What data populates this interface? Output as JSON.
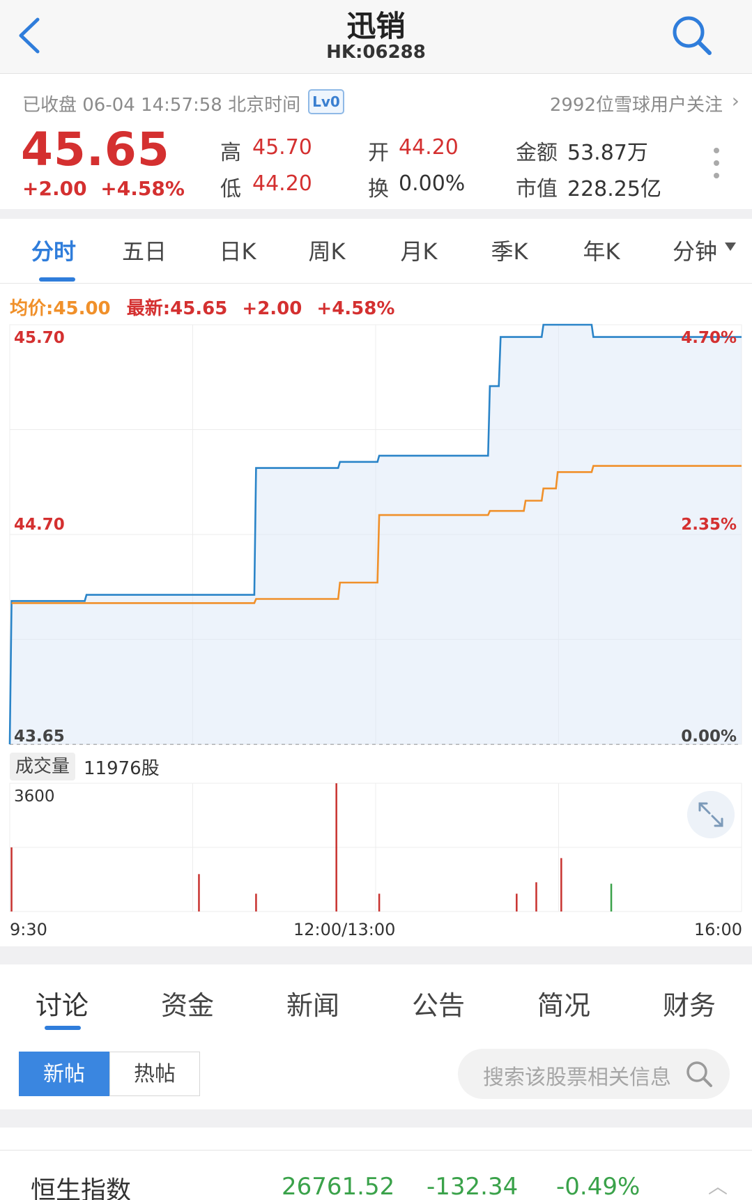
{
  "header": {
    "title": "迅销",
    "code": "HK:06288"
  },
  "quote": {
    "status": "已收盘 06-04 14:57:58 北京时间",
    "level_badge": "Lv0",
    "followers": "2992位雪球用户关注",
    "price": "45.65",
    "change": "+2.00",
    "change_pct": "+4.58%",
    "stats": {
      "high_label": "高",
      "high": "45.70",
      "low_label": "低",
      "low": "44.20",
      "open_label": "开",
      "open": "44.20",
      "turnover_label": "换",
      "turnover": "0.00%",
      "amount_label": "金额",
      "amount": "53.87万",
      "mcap_label": "市值",
      "mcap": "228.25亿"
    },
    "colors": {
      "up": "#d43030",
      "down": "#3aa24a",
      "accent": "#2f7ddb"
    }
  },
  "period_tabs": [
    "分时",
    "五日",
    "日K",
    "周K",
    "月K",
    "季K",
    "年K",
    "分钟"
  ],
  "period_tabs_dropdown_icon": "caret-down-icon",
  "active_period_tab": 0,
  "chart_header": {
    "avg_price": "均价:45.00",
    "latest": "最新:45.65",
    "change": "+2.00",
    "change_pct": "+4.58%"
  },
  "volume": {
    "label": "成交量",
    "total": "11976股"
  },
  "chart_data": {
    "type": "line",
    "price_axis": {
      "ticks": [
        "45.70",
        "44.70",
        "43.65"
      ],
      "ylim": [
        43.65,
        45.7
      ]
    },
    "percent_axis": {
      "ticks": [
        "4.70%",
        "2.35%",
        "0.00%"
      ]
    },
    "volume_axis": {
      "ticks": [
        "3600"
      ],
      "ylim": [
        0,
        3600
      ]
    },
    "time_ticks": [
      "9:30",
      "12:00/13:00",
      "16:00"
    ],
    "x_minutes_range": [
      0,
      330
    ],
    "series": [
      {
        "color": "#2a84c8",
        "points": [
          [
            0,
            43.65
          ],
          [
            1,
            44.35
          ],
          [
            42,
            44.35
          ],
          [
            43,
            44.38
          ],
          [
            137,
            44.38
          ],
          [
            138,
            45.0
          ],
          [
            184,
            45.0
          ],
          [
            185,
            45.03
          ],
          [
            206,
            45.03
          ],
          [
            207,
            45.06
          ],
          [
            268,
            45.06
          ],
          [
            269,
            45.4
          ],
          [
            274,
            45.4
          ],
          [
            275,
            45.64
          ],
          [
            298,
            45.64
          ],
          [
            299,
            45.7
          ],
          [
            326,
            45.7
          ],
          [
            327,
            45.64
          ],
          [
            410,
            45.64
          ]
        ]
      },
      {
        "color": "#f0902a",
        "points": [
          [
            1,
            44.34
          ],
          [
            137,
            44.34
          ],
          [
            138,
            44.36
          ],
          [
            184,
            44.36
          ],
          [
            185,
            44.44
          ],
          [
            206,
            44.44
          ],
          [
            207,
            44.77
          ],
          [
            268,
            44.77
          ],
          [
            269,
            44.79
          ],
          [
            288,
            44.79
          ],
          [
            289,
            44.84
          ],
          [
            298,
            44.84
          ],
          [
            299,
            44.9
          ],
          [
            306,
            44.9
          ],
          [
            307,
            44.98
          ],
          [
            326,
            44.98
          ],
          [
            327,
            45.01
          ],
          [
            410,
            45.01
          ]
        ]
      }
    ],
    "volume_bars": [
      {
        "t": 1,
        "v": 1800,
        "dir": "up"
      },
      {
        "t": 106,
        "v": 1050,
        "dir": "up"
      },
      {
        "t": 138,
        "v": 500,
        "dir": "up"
      },
      {
        "t": 183,
        "v": 3600,
        "dir": "up"
      },
      {
        "t": 207,
        "v": 500,
        "dir": "up"
      },
      {
        "t": 284,
        "v": 500,
        "dir": "up"
      },
      {
        "t": 295,
        "v": 820,
        "dir": "up"
      },
      {
        "t": 309,
        "v": 1500,
        "dir": "up"
      },
      {
        "t": 337,
        "v": 780,
        "dir": "down"
      }
    ]
  },
  "bottom_tabs": [
    "讨论",
    "资金",
    "新闻",
    "公告",
    "简况",
    "财务"
  ],
  "active_bottom_tab": 0,
  "segments": {
    "new": "新帖",
    "hot": "热帖"
  },
  "search": {
    "placeholder": "搜索该股票相关信息"
  },
  "ticker": {
    "name": "恒生指数",
    "value": "26761.52",
    "change": "-132.34",
    "change_pct": "-0.49%"
  }
}
